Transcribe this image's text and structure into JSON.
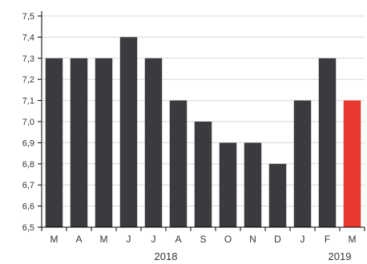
{
  "chart_data": {
    "type": "bar",
    "categories": [
      "M",
      "A",
      "M",
      "J",
      "J",
      "A",
      "S",
      "O",
      "N",
      "D",
      "J",
      "F",
      "M"
    ],
    "values": [
      7.3,
      7.3,
      7.3,
      7.4,
      7.3,
      7.1,
      7.0,
      6.9,
      6.9,
      6.8,
      7.1,
      7.3,
      7.1
    ],
    "highlight_index": 12,
    "ylim": [
      6.5,
      7.5
    ],
    "yticks": [
      "6,5",
      "6,6",
      "6,7",
      "6,8",
      "6,9",
      "7,0",
      "7,1",
      "7,2",
      "7,3",
      "7,4",
      "7,5"
    ],
    "year_labels": [
      {
        "label": "2018",
        "category_index": 4.5
      },
      {
        "label": "2019",
        "category_index": 11.5
      }
    ],
    "grid": true,
    "colors": {
      "bar": "#3a3a3f",
      "highlight": "#e8382f",
      "grid": "#d7d7d7",
      "axis": "#000000"
    }
  }
}
